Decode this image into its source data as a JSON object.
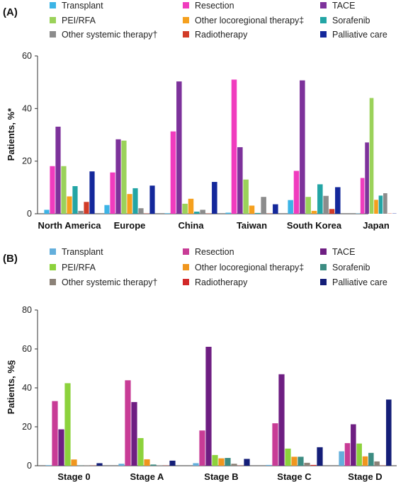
{
  "chart_data": [
    {
      "type": "bar",
      "panel_label": "(A)",
      "legend_position": "top",
      "ylabel": "Patients, %*",
      "ylim": [
        0,
        60
      ],
      "yticks": [
        "0",
        "20",
        "40",
        "60"
      ],
      "categories": [
        "North America",
        "Europe",
        "China",
        "Taiwan",
        "South Korea",
        "Japan"
      ],
      "series": [
        {
          "name": "Transplant",
          "color": "#3cb4e6",
          "values": [
            1.5,
            3.3,
            0.2,
            0.4,
            5.2,
            0.1
          ]
        },
        {
          "name": "Resection",
          "color": "#f03cbe",
          "values": [
            18.1,
            15.7,
            31.3,
            51.0,
            16.3,
            13.6
          ]
        },
        {
          "name": "TACE",
          "color": "#7d329b",
          "values": [
            33.1,
            28.3,
            50.3,
            25.3,
            50.7,
            27.1
          ]
        },
        {
          "name": "PEI/RFA",
          "color": "#9bd25a",
          "values": [
            18.1,
            27.8,
            3.8,
            13.0,
            6.4,
            44.0
          ]
        },
        {
          "name": "Other locoregional therapy‡",
          "color": "#f5a01e",
          "values": [
            6.6,
            7.5,
            5.7,
            3.1,
            1.1,
            5.3
          ]
        },
        {
          "name": "Sorafenib",
          "color": "#23a5a5",
          "values": [
            10.5,
            9.7,
            0.8,
            0.3,
            11.2,
            6.9
          ]
        },
        {
          "name": "Other systemic therapy†",
          "color": "#8c8c8c",
          "values": [
            1.1,
            2.1,
            1.5,
            6.4,
            6.8,
            7.8
          ]
        },
        {
          "name": "Radiotherapy",
          "color": "#d23c28",
          "values": [
            4.5,
            0.1,
            0.1,
            0.1,
            1.8,
            0.1
          ]
        },
        {
          "name": "Palliative care",
          "color": "#14289b",
          "values": [
            16.1,
            10.7,
            12.1,
            3.6,
            10.1,
            0.1
          ]
        }
      ]
    },
    {
      "type": "bar",
      "panel_label": "(B)",
      "legend_position": "top",
      "ylabel": "Patients, %§",
      "ylim": [
        0,
        80
      ],
      "yticks": [
        "0",
        "20",
        "40",
        "60",
        "80"
      ],
      "categories": [
        "Stage 0",
        "Stage A",
        "Stage B",
        "Stage C",
        "Stage D"
      ],
      "series": [
        {
          "name": "Transplant",
          "color": "#64afdc",
          "values": [
            0.3,
            1.0,
            1.3,
            0.4,
            7.4
          ]
        },
        {
          "name": "Resection",
          "color": "#c83c96",
          "values": [
            33.2,
            43.9,
            18.1,
            21.8,
            11.6
          ]
        },
        {
          "name": "TACE",
          "color": "#6e1e82",
          "values": [
            18.7,
            32.7,
            61.1,
            47.0,
            21.3
          ]
        },
        {
          "name": "PEI/RFA",
          "color": "#8cd23c",
          "values": [
            42.4,
            14.2,
            5.5,
            8.8,
            11.4
          ]
        },
        {
          "name": "Other locoregional therapy‡",
          "color": "#f0961e",
          "values": [
            3.2,
            3.3,
            3.8,
            4.6,
            4.8
          ]
        },
        {
          "name": "Sorafenib",
          "color": "#3c8c82",
          "values": [
            0.1,
            0.6,
            4.0,
            4.6,
            6.6
          ]
        },
        {
          "name": "Other systemic therapy†",
          "color": "#8c8278",
          "values": [
            0.1,
            0.1,
            1.0,
            1.5,
            2.2
          ]
        },
        {
          "name": "Radiotherapy",
          "color": "#d22828",
          "values": [
            0.1,
            0.1,
            0.1,
            0.4,
            0.1
          ]
        },
        {
          "name": "Palliative care",
          "color": "#141e78",
          "values": [
            1.3,
            2.6,
            3.5,
            9.5,
            34.0
          ]
        }
      ]
    }
  ]
}
